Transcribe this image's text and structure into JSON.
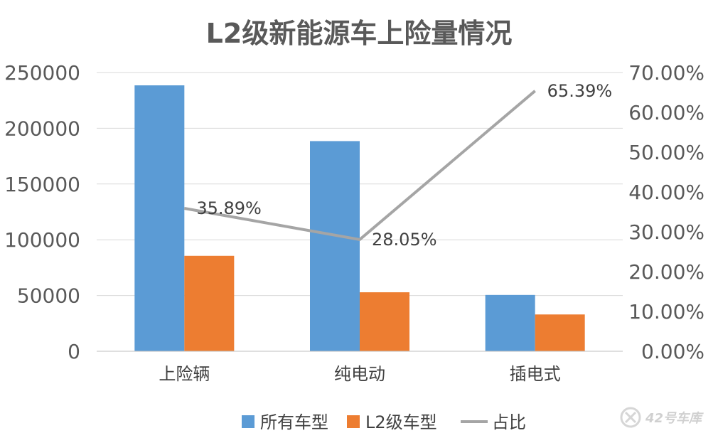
{
  "chart_data": {
    "type": "bar",
    "title": "L2级新能源车上险量情况",
    "categories": [
      "上险辆",
      "纯电动",
      "插电式"
    ],
    "series": [
      {
        "name": "所有车型",
        "kind": "bar",
        "axis": "left",
        "color": "#5b9bd5",
        "values": [
          238500,
          188500,
          50500
        ]
      },
      {
        "name": "L2级车型",
        "kind": "bar",
        "axis": "left",
        "color": "#ed7d31",
        "values": [
          85600,
          52900,
          33000
        ]
      },
      {
        "name": "占比",
        "kind": "line",
        "axis": "right",
        "color": "#a5a5a5",
        "values": [
          35.89,
          28.05,
          65.39
        ],
        "labels": [
          "35.89%",
          "28.05%",
          "65.39%"
        ]
      }
    ],
    "y_left": {
      "min": 0,
      "max": 250000,
      "step": 50000,
      "ticks": [
        "0",
        "50000",
        "100000",
        "150000",
        "200000",
        "250000"
      ]
    },
    "y_right": {
      "min": 0,
      "max": 70,
      "step": 10,
      "ticks": [
        "0.00%",
        "10.00%",
        "20.00%",
        "30.00%",
        "40.00%",
        "50.00%",
        "60.00%",
        "70.00%"
      ]
    },
    "grid": true,
    "legend_position": "bottom"
  },
  "watermark": {
    "text": "42号车库"
  }
}
